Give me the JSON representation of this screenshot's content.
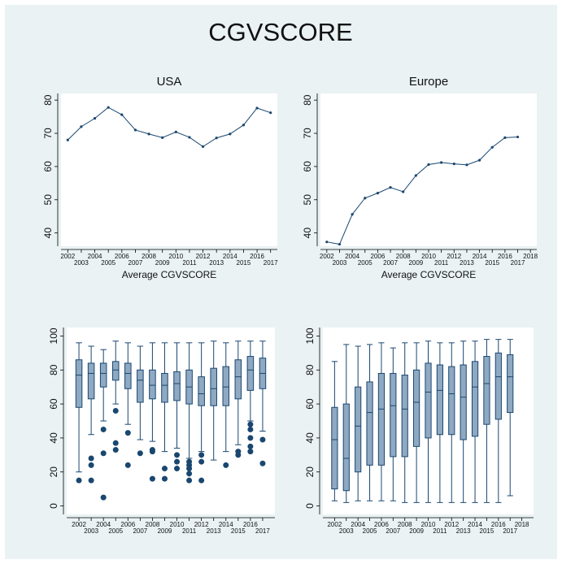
{
  "title": "CGVSCORE",
  "chart_data": [
    {
      "type": "line",
      "title": "USA",
      "xlabel": "Average CGVSCORE",
      "color": "#1a476f",
      "grid": false,
      "x": [
        2002,
        2003,
        2004,
        2005,
        2006,
        2007,
        2008,
        2009,
        2010,
        2011,
        2012,
        2013,
        2014,
        2015,
        2016,
        2017
      ],
      "values": [
        68,
        72,
        74.5,
        77.8,
        75.6,
        71,
        69.8,
        68.7,
        70.4,
        68.8,
        66,
        68.6,
        69.8,
        72.5,
        77.6,
        76.2
      ],
      "xlim": [
        2001.5,
        2017.5
      ],
      "xticks": [
        2002,
        2003,
        2004,
        2005,
        2006,
        2007,
        2008,
        2009,
        2010,
        2011,
        2012,
        2013,
        2014,
        2015,
        2016,
        2017
      ],
      "ylim": [
        36,
        82
      ],
      "yticks": [
        40,
        50,
        60,
        70,
        80
      ]
    },
    {
      "type": "line",
      "title": "Europe",
      "xlabel": "Average CGVSCORE",
      "color": "#1a476f",
      "grid": false,
      "x": [
        2002,
        2003,
        2004,
        2005,
        2006,
        2007,
        2008,
        2009,
        2010,
        2011,
        2012,
        2013,
        2014,
        2015,
        2016,
        2017
      ],
      "values": [
        37.3,
        36.6,
        45.6,
        50.5,
        52,
        53.7,
        52.4,
        57.3,
        60.6,
        61.2,
        60.8,
        60.5,
        61.9,
        65.8,
        68.7,
        68.9
      ],
      "xlim": [
        2001.5,
        2018.5
      ],
      "xticks": [
        2002,
        2003,
        2004,
        2005,
        2006,
        2007,
        2008,
        2009,
        2010,
        2011,
        2012,
        2013,
        2014,
        2015,
        2016,
        2017,
        2018
      ],
      "ylim": [
        36,
        82
      ],
      "yticks": [
        40,
        50,
        60,
        70,
        80
      ]
    },
    {
      "type": "box",
      "color": "#8fa9c3",
      "edgecolor": "#1a476f",
      "grid": false,
      "x": [
        2002,
        2003,
        2004,
        2005,
        2006,
        2007,
        2008,
        2009,
        2010,
        2011,
        2012,
        2013,
        2014,
        2015,
        2016,
        2017
      ],
      "boxes": [
        {
          "whislo": 20,
          "q1": 58,
          "med": 77,
          "q3": 86,
          "whishi": 96,
          "fliers": [
            15
          ]
        },
        {
          "whislo": 42,
          "q1": 63,
          "med": 78,
          "q3": 84,
          "whishi": 94,
          "fliers": [
            28,
            24,
            15
          ]
        },
        {
          "whislo": 50,
          "q1": 70,
          "med": 78,
          "q3": 84,
          "whishi": 92,
          "fliers": [
            45,
            31,
            5
          ]
        },
        {
          "whislo": 60,
          "q1": 74,
          "med": 80,
          "q3": 85,
          "whishi": 97,
          "fliers": [
            56,
            37,
            33
          ]
        },
        {
          "whislo": 48,
          "q1": 69,
          "med": 78,
          "q3": 84,
          "whishi": 96,
          "fliers": [
            43,
            24
          ]
        },
        {
          "whislo": 39,
          "q1": 61,
          "med": 74,
          "q3": 80,
          "whishi": 94,
          "fliers": [
            31
          ]
        },
        {
          "whislo": 38,
          "q1": 63,
          "med": 71,
          "q3": 80,
          "whishi": 96,
          "fliers": [
            33,
            32,
            16
          ]
        },
        {
          "whislo": 32,
          "q1": 61,
          "med": 71,
          "q3": 78,
          "whishi": 96,
          "fliers": [
            22,
            16
          ]
        },
        {
          "whislo": 34,
          "q1": 62,
          "med": 72,
          "q3": 79,
          "whishi": 96,
          "fliers": [
            30,
            26,
            22
          ]
        },
        {
          "whislo": 28,
          "q1": 60,
          "med": 70,
          "q3": 80,
          "whishi": 96,
          "fliers": [
            26,
            24,
            22,
            19,
            15
          ]
        },
        {
          "whislo": 32,
          "q1": 59,
          "med": 66,
          "q3": 76,
          "whishi": 96,
          "fliers": [
            30,
            26,
            15
          ]
        },
        {
          "whislo": 27,
          "q1": 59,
          "med": 69,
          "q3": 81,
          "whishi": 97,
          "fliers": []
        },
        {
          "whislo": 32,
          "q1": 59,
          "med": 70,
          "q3": 82,
          "whishi": 96,
          "fliers": [
            24
          ]
        },
        {
          "whislo": 36,
          "q1": 63,
          "med": 76,
          "q3": 86,
          "whishi": 97,
          "fliers": [
            32,
            30
          ]
        },
        {
          "whislo": 50,
          "q1": 68,
          "med": 80,
          "q3": 88,
          "whishi": 97,
          "fliers": [
            48,
            45,
            40,
            35,
            32
          ]
        },
        {
          "whislo": 44,
          "q1": 69,
          "med": 78,
          "q3": 87,
          "whishi": 97,
          "fliers": [
            39,
            25
          ]
        }
      ],
      "xlim": [
        2001,
        2018
      ],
      "xticks": [
        2002,
        2003,
        2004,
        2005,
        2006,
        2007,
        2008,
        2009,
        2010,
        2011,
        2012,
        2013,
        2014,
        2015,
        2016,
        2017
      ],
      "ylim": [
        -5,
        105
      ],
      "yticks": [
        0,
        20,
        40,
        60,
        80,
        100
      ]
    },
    {
      "type": "box",
      "color": "#8fa9c3",
      "edgecolor": "#1a476f",
      "grid": false,
      "x": [
        2002,
        2003,
        2004,
        2005,
        2006,
        2007,
        2008,
        2009,
        2010,
        2011,
        2012,
        2013,
        2014,
        2015,
        2016,
        2017
      ],
      "boxes": [
        {
          "whislo": 3,
          "q1": 10,
          "med": 39,
          "q3": 58,
          "whishi": 85,
          "fliers": []
        },
        {
          "whislo": 2,
          "q1": 9,
          "med": 28,
          "q3": 60,
          "whishi": 95,
          "fliers": []
        },
        {
          "whislo": 3,
          "q1": 20,
          "med": 47,
          "q3": 70,
          "whishi": 94,
          "fliers": []
        },
        {
          "whislo": 3,
          "q1": 24,
          "med": 55,
          "q3": 73,
          "whishi": 95,
          "fliers": []
        },
        {
          "whislo": 3,
          "q1": 24,
          "med": 57,
          "q3": 78,
          "whishi": 96,
          "fliers": []
        },
        {
          "whislo": 3,
          "q1": 29,
          "med": 59,
          "q3": 78,
          "whishi": 93,
          "fliers": []
        },
        {
          "whislo": 2,
          "q1": 29,
          "med": 57,
          "q3": 77,
          "whishi": 96,
          "fliers": []
        },
        {
          "whislo": 2,
          "q1": 35,
          "med": 61,
          "q3": 80,
          "whishi": 96,
          "fliers": []
        },
        {
          "whislo": 2,
          "q1": 40,
          "med": 67,
          "q3": 84,
          "whishi": 97,
          "fliers": []
        },
        {
          "whislo": 2,
          "q1": 42,
          "med": 68,
          "q3": 83,
          "whishi": 96,
          "fliers": []
        },
        {
          "whislo": 2,
          "q1": 42,
          "med": 66,
          "q3": 82,
          "whishi": 96,
          "fliers": []
        },
        {
          "whislo": 2,
          "q1": 39,
          "med": 64,
          "q3": 83,
          "whishi": 97,
          "fliers": []
        },
        {
          "whislo": 2,
          "q1": 41,
          "med": 70,
          "q3": 85,
          "whishi": 97,
          "fliers": []
        },
        {
          "whislo": 2,
          "q1": 48,
          "med": 72,
          "q3": 88,
          "whishi": 98,
          "fliers": []
        },
        {
          "whislo": 2,
          "q1": 51,
          "med": 76,
          "q3": 90,
          "whishi": 98,
          "fliers": []
        },
        {
          "whislo": 6,
          "q1": 55,
          "med": 76,
          "q3": 89,
          "whishi": 98,
          "fliers": []
        }
      ],
      "xlim": [
        2001,
        2019
      ],
      "xticks": [
        2002,
        2003,
        2004,
        2005,
        2006,
        2007,
        2008,
        2009,
        2010,
        2011,
        2012,
        2013,
        2014,
        2015,
        2016,
        2017,
        2018
      ],
      "ylim": [
        -5,
        105
      ],
      "yticks": [
        0,
        20,
        40,
        60,
        80,
        100
      ]
    }
  ]
}
